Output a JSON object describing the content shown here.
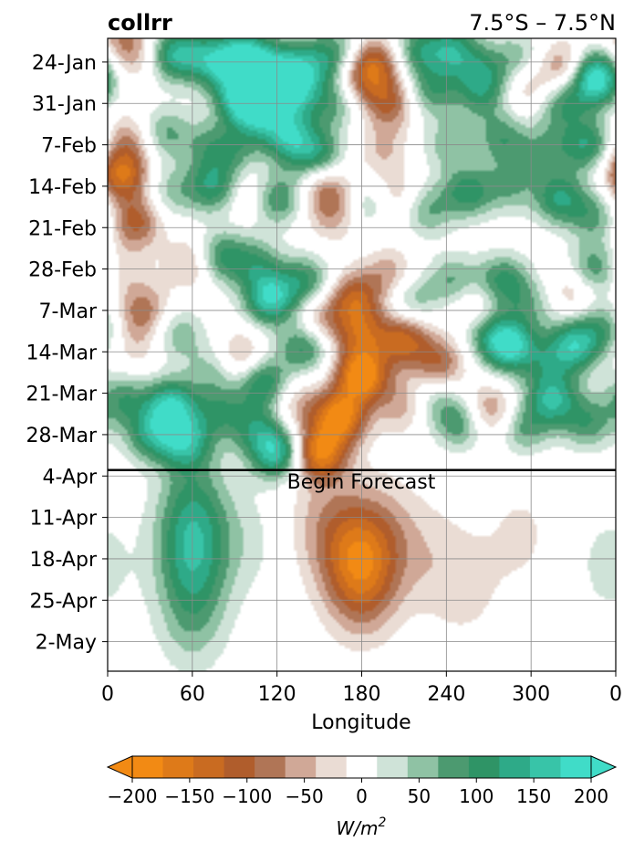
{
  "chart_data": {
    "type": "heatmap",
    "title": "collrr",
    "subtitle": "7.5°S – 7.5°N",
    "xlabel": "Longitude",
    "ylabel": "",
    "x_ticks": [
      "0",
      "60",
      "120",
      "180",
      "240",
      "300",
      "0"
    ],
    "x_range": [
      0,
      360
    ],
    "y_ticks": [
      "24-Jan",
      "31-Jan",
      "7-Feb",
      "14-Feb",
      "21-Feb",
      "28-Feb",
      "7-Mar",
      "14-Mar",
      "21-Mar",
      "28-Mar",
      "4-Apr",
      "11-Apr",
      "18-Apr",
      "25-Apr",
      "2-May"
    ],
    "y_range": [
      "2025-01-20",
      "2025-05-07"
    ],
    "grid": true,
    "forecast_start": "2025-04-03",
    "annotation": "Begin Forecast",
    "colorbar": {
      "label": "W/m",
      "label_sup": "2",
      "ticks": [
        "−200",
        "−150",
        "−100",
        "−50",
        "0",
        "50",
        "100",
        "150",
        "200"
      ],
      "levels": [
        -200,
        -175,
        -150,
        -125,
        -100,
        -75,
        -50,
        -25,
        25,
        50,
        75,
        100,
        125,
        150,
        175,
        200
      ],
      "colors": [
        "#f28a14",
        "#de7a19",
        "#c96b21",
        "#b05d2c",
        "#b07556",
        "#d0a897",
        "#eadcd4",
        "#ffffff",
        "#cfe3d8",
        "#8fc2a4",
        "#4c9a70",
        "#2f9466",
        "#2eaa88",
        "#38c4a8",
        "#40dcc8"
      ],
      "extend": "both",
      "under_color": "#f28a14",
      "over_color": "#40dcc8"
    },
    "blobs": [
      {
        "lon": 10,
        "day": 0,
        "value": -60
      },
      {
        "lon": 20,
        "day": 3,
        "value": -50
      },
      {
        "lon": 45,
        "day": 3,
        "value": 100
      },
      {
        "lon": 55,
        "day": 2,
        "value": 60
      },
      {
        "lon": 75,
        "day": 4,
        "value": 120
      },
      {
        "lon": 95,
        "day": 3,
        "value": 140
      },
      {
        "lon": 110,
        "day": 4,
        "value": 90
      },
      {
        "lon": 130,
        "day": 5,
        "value": 100
      },
      {
        "lon": 150,
        "day": 4,
        "value": 80
      },
      {
        "lon": 165,
        "day": 2,
        "value": 60
      },
      {
        "lon": 190,
        "day": 4,
        "value": -110
      },
      {
        "lon": 220,
        "day": 2,
        "value": 100
      },
      {
        "lon": 245,
        "day": 2,
        "value": 120
      },
      {
        "lon": 265,
        "day": 6,
        "value": 90
      },
      {
        "lon": 290,
        "day": 3,
        "value": 60
      },
      {
        "lon": 325,
        "day": 5,
        "value": -100
      },
      {
        "lon": 345,
        "day": 6,
        "value": 150
      },
      {
        "lon": 95,
        "day": 10,
        "value": 180
      },
      {
        "lon": 110,
        "day": 13,
        "value": 120
      },
      {
        "lon": 130,
        "day": 9,
        "value": 150
      },
      {
        "lon": 160,
        "day": 11,
        "value": 80
      },
      {
        "lon": 180,
        "day": 7,
        "value": -80
      },
      {
        "lon": 200,
        "day": 11,
        "value": -100
      },
      {
        "lon": 230,
        "day": 9,
        "value": 90
      },
      {
        "lon": 265,
        "day": 10,
        "value": 70
      },
      {
        "lon": 300,
        "day": 9,
        "value": -60
      },
      {
        "lon": 320,
        "day": 11,
        "value": 100
      },
      {
        "lon": 345,
        "day": 8,
        "value": 80
      },
      {
        "lon": 15,
        "day": 17,
        "value": -70
      },
      {
        "lon": 40,
        "day": 16,
        "value": 80
      },
      {
        "lon": 70,
        "day": 18,
        "value": 60
      },
      {
        "lon": 90,
        "day": 19,
        "value": 70
      },
      {
        "lon": 130,
        "day": 17,
        "value": 140
      },
      {
        "lon": 150,
        "day": 20,
        "value": 110
      },
      {
        "lon": 195,
        "day": 19,
        "value": -50
      },
      {
        "lon": 240,
        "day": 18,
        "value": 60
      },
      {
        "lon": 280,
        "day": 17,
        "value": 90
      },
      {
        "lon": 310,
        "day": 19,
        "value": 70
      },
      {
        "lon": 340,
        "day": 18,
        "value": 120
      },
      {
        "lon": 10,
        "day": 23,
        "value": -150
      },
      {
        "lon": 20,
        "day": 31,
        "value": -110
      },
      {
        "lon": 45,
        "day": 26,
        "value": 60
      },
      {
        "lon": 75,
        "day": 25,
        "value": 120
      },
      {
        "lon": 100,
        "day": 26,
        "value": -50
      },
      {
        "lon": 120,
        "day": 27,
        "value": 110
      },
      {
        "lon": 155,
        "day": 25,
        "value": -90
      },
      {
        "lon": 160,
        "day": 30,
        "value": -60
      },
      {
        "lon": 185,
        "day": 28,
        "value": 60
      },
      {
        "lon": 205,
        "day": 27,
        "value": -60
      },
      {
        "lon": 225,
        "day": 29,
        "value": 80
      },
      {
        "lon": 255,
        "day": 26,
        "value": 110
      },
      {
        "lon": 285,
        "day": 25,
        "value": 70
      },
      {
        "lon": 320,
        "day": 27,
        "value": 120
      },
      {
        "lon": 345,
        "day": 30,
        "value": 80
      },
      {
        "lon": 10,
        "day": 39,
        "value": -40
      },
      {
        "lon": 25,
        "day": 46,
        "value": -90
      },
      {
        "lon": 60,
        "day": 38,
        "value": -70
      },
      {
        "lon": 80,
        "day": 37,
        "value": 110
      },
      {
        "lon": 105,
        "day": 38,
        "value": 80
      },
      {
        "lon": 115,
        "day": 44,
        "value": 170
      },
      {
        "lon": 140,
        "day": 41,
        "value": 100
      },
      {
        "lon": 150,
        "day": 48,
        "value": -80
      },
      {
        "lon": 175,
        "day": 44,
        "value": -120
      },
      {
        "lon": 200,
        "day": 40,
        "value": -70
      },
      {
        "lon": 215,
        "day": 44,
        "value": 70
      },
      {
        "lon": 245,
        "day": 41,
        "value": 80
      },
      {
        "lon": 260,
        "day": 45,
        "value": -50
      },
      {
        "lon": 280,
        "day": 41,
        "value": 110
      },
      {
        "lon": 300,
        "day": 45,
        "value": 60
      },
      {
        "lon": 330,
        "day": 43,
        "value": -60
      },
      {
        "lon": 345,
        "day": 39,
        "value": 100
      },
      {
        "lon": 20,
        "day": 52,
        "value": -40
      },
      {
        "lon": 50,
        "day": 50,
        "value": 70
      },
      {
        "lon": 75,
        "day": 56,
        "value": 60
      },
      {
        "lon": 95,
        "day": 54,
        "value": -80
      },
      {
        "lon": 110,
        "day": 58,
        "value": 130
      },
      {
        "lon": 140,
        "day": 52,
        "value": 120
      },
      {
        "lon": 180,
        "day": 50,
        "value": -110
      },
      {
        "lon": 210,
        "day": 51,
        "value": -130
      },
      {
        "lon": 235,
        "day": 55,
        "value": -100
      },
      {
        "lon": 270,
        "day": 50,
        "value": 80
      },
      {
        "lon": 285,
        "day": 52,
        "value": 170
      },
      {
        "lon": 310,
        "day": 55,
        "value": 60
      },
      {
        "lon": 330,
        "day": 52,
        "value": 150
      },
      {
        "lon": 350,
        "day": 49,
        "value": 80
      },
      {
        "lon": 180,
        "day": 57,
        "value": -200
      },
      {
        "lon": 165,
        "day": 64,
        "value": -180
      },
      {
        "lon": 150,
        "day": 70,
        "value": -170
      },
      {
        "lon": 10,
        "day": 61,
        "value": 90
      },
      {
        "lon": 30,
        "day": 67,
        "value": 110
      },
      {
        "lon": 45,
        "day": 62,
        "value": 160
      },
      {
        "lon": 55,
        "day": 68,
        "value": 130
      },
      {
        "lon": 80,
        "day": 63,
        "value": 80
      },
      {
        "lon": 105,
        "day": 66,
        "value": 90
      },
      {
        "lon": 120,
        "day": 70,
        "value": 160
      },
      {
        "lon": 135,
        "day": 62,
        "value": -60
      },
      {
        "lon": 210,
        "day": 62,
        "value": -70
      },
      {
        "lon": 230,
        "day": 61,
        "value": 60
      },
      {
        "lon": 250,
        "day": 65,
        "value": 100
      },
      {
        "lon": 270,
        "day": 63,
        "value": -90
      },
      {
        "lon": 295,
        "day": 66,
        "value": 80
      },
      {
        "lon": 315,
        "day": 61,
        "value": 140
      },
      {
        "lon": 340,
        "day": 65,
        "value": 90
      },
      {
        "lon": 60,
        "day": 78,
        "value": 70
      },
      {
        "lon": 60,
        "day": 87,
        "value": 110
      },
      {
        "lon": 60,
        "day": 98,
        "value": 60
      },
      {
        "lon": 100,
        "day": 85,
        "value": 30
      },
      {
        "lon": 150,
        "day": 82,
        "value": -45
      },
      {
        "lon": 175,
        "day": 86,
        "value": -70
      },
      {
        "lon": 180,
        "day": 91,
        "value": -110
      },
      {
        "lon": 200,
        "day": 84,
        "value": -40
      },
      {
        "lon": 230,
        "day": 88,
        "value": -30
      },
      {
        "lon": 255,
        "day": 93,
        "value": -30
      },
      {
        "lon": 293,
        "day": 84,
        "value": -30
      },
      {
        "lon": 355,
        "day": 89,
        "value": 35
      }
    ]
  }
}
